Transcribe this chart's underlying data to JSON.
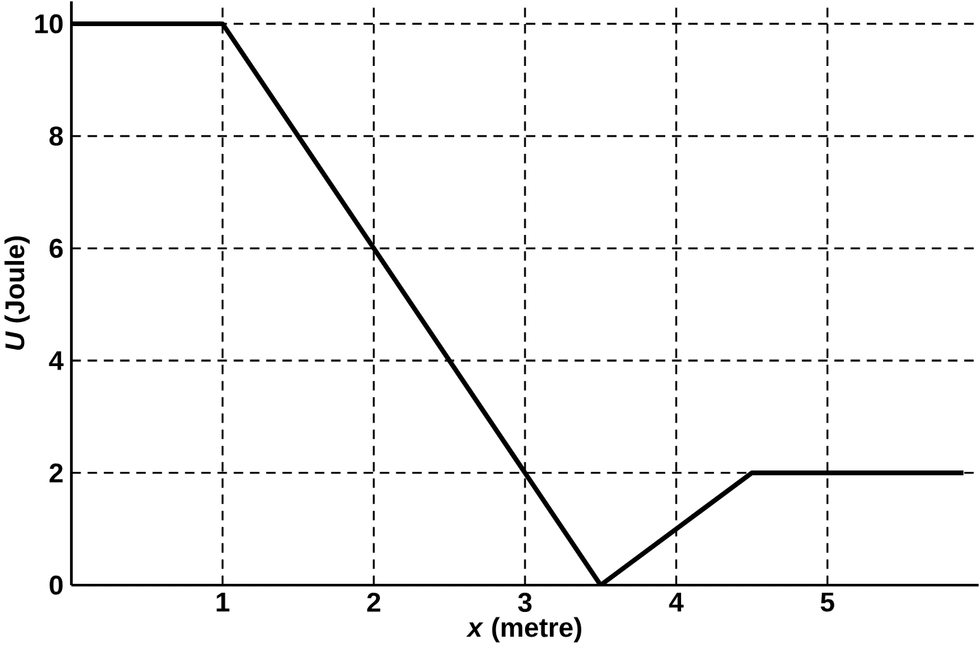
{
  "chart_data": {
    "type": "line",
    "xlabel": "*x* (metre)",
    "ylabel": "*U* (Joule)",
    "x": [
      0,
      1,
      3.5,
      4.5,
      5.9
    ],
    "series": [
      {
        "color": "#000000",
        "values": [
          10,
          10,
          0,
          2,
          2
        ]
      }
    ],
    "xlim": [
      0,
      6
    ],
    "ylim": [
      0,
      10.4
    ],
    "xticks": [
      1,
      2,
      3,
      4,
      5
    ],
    "yticks": [
      0,
      2,
      4,
      6,
      8,
      10
    ],
    "grid": true,
    "line_style": "solid",
    "marker": "none"
  }
}
